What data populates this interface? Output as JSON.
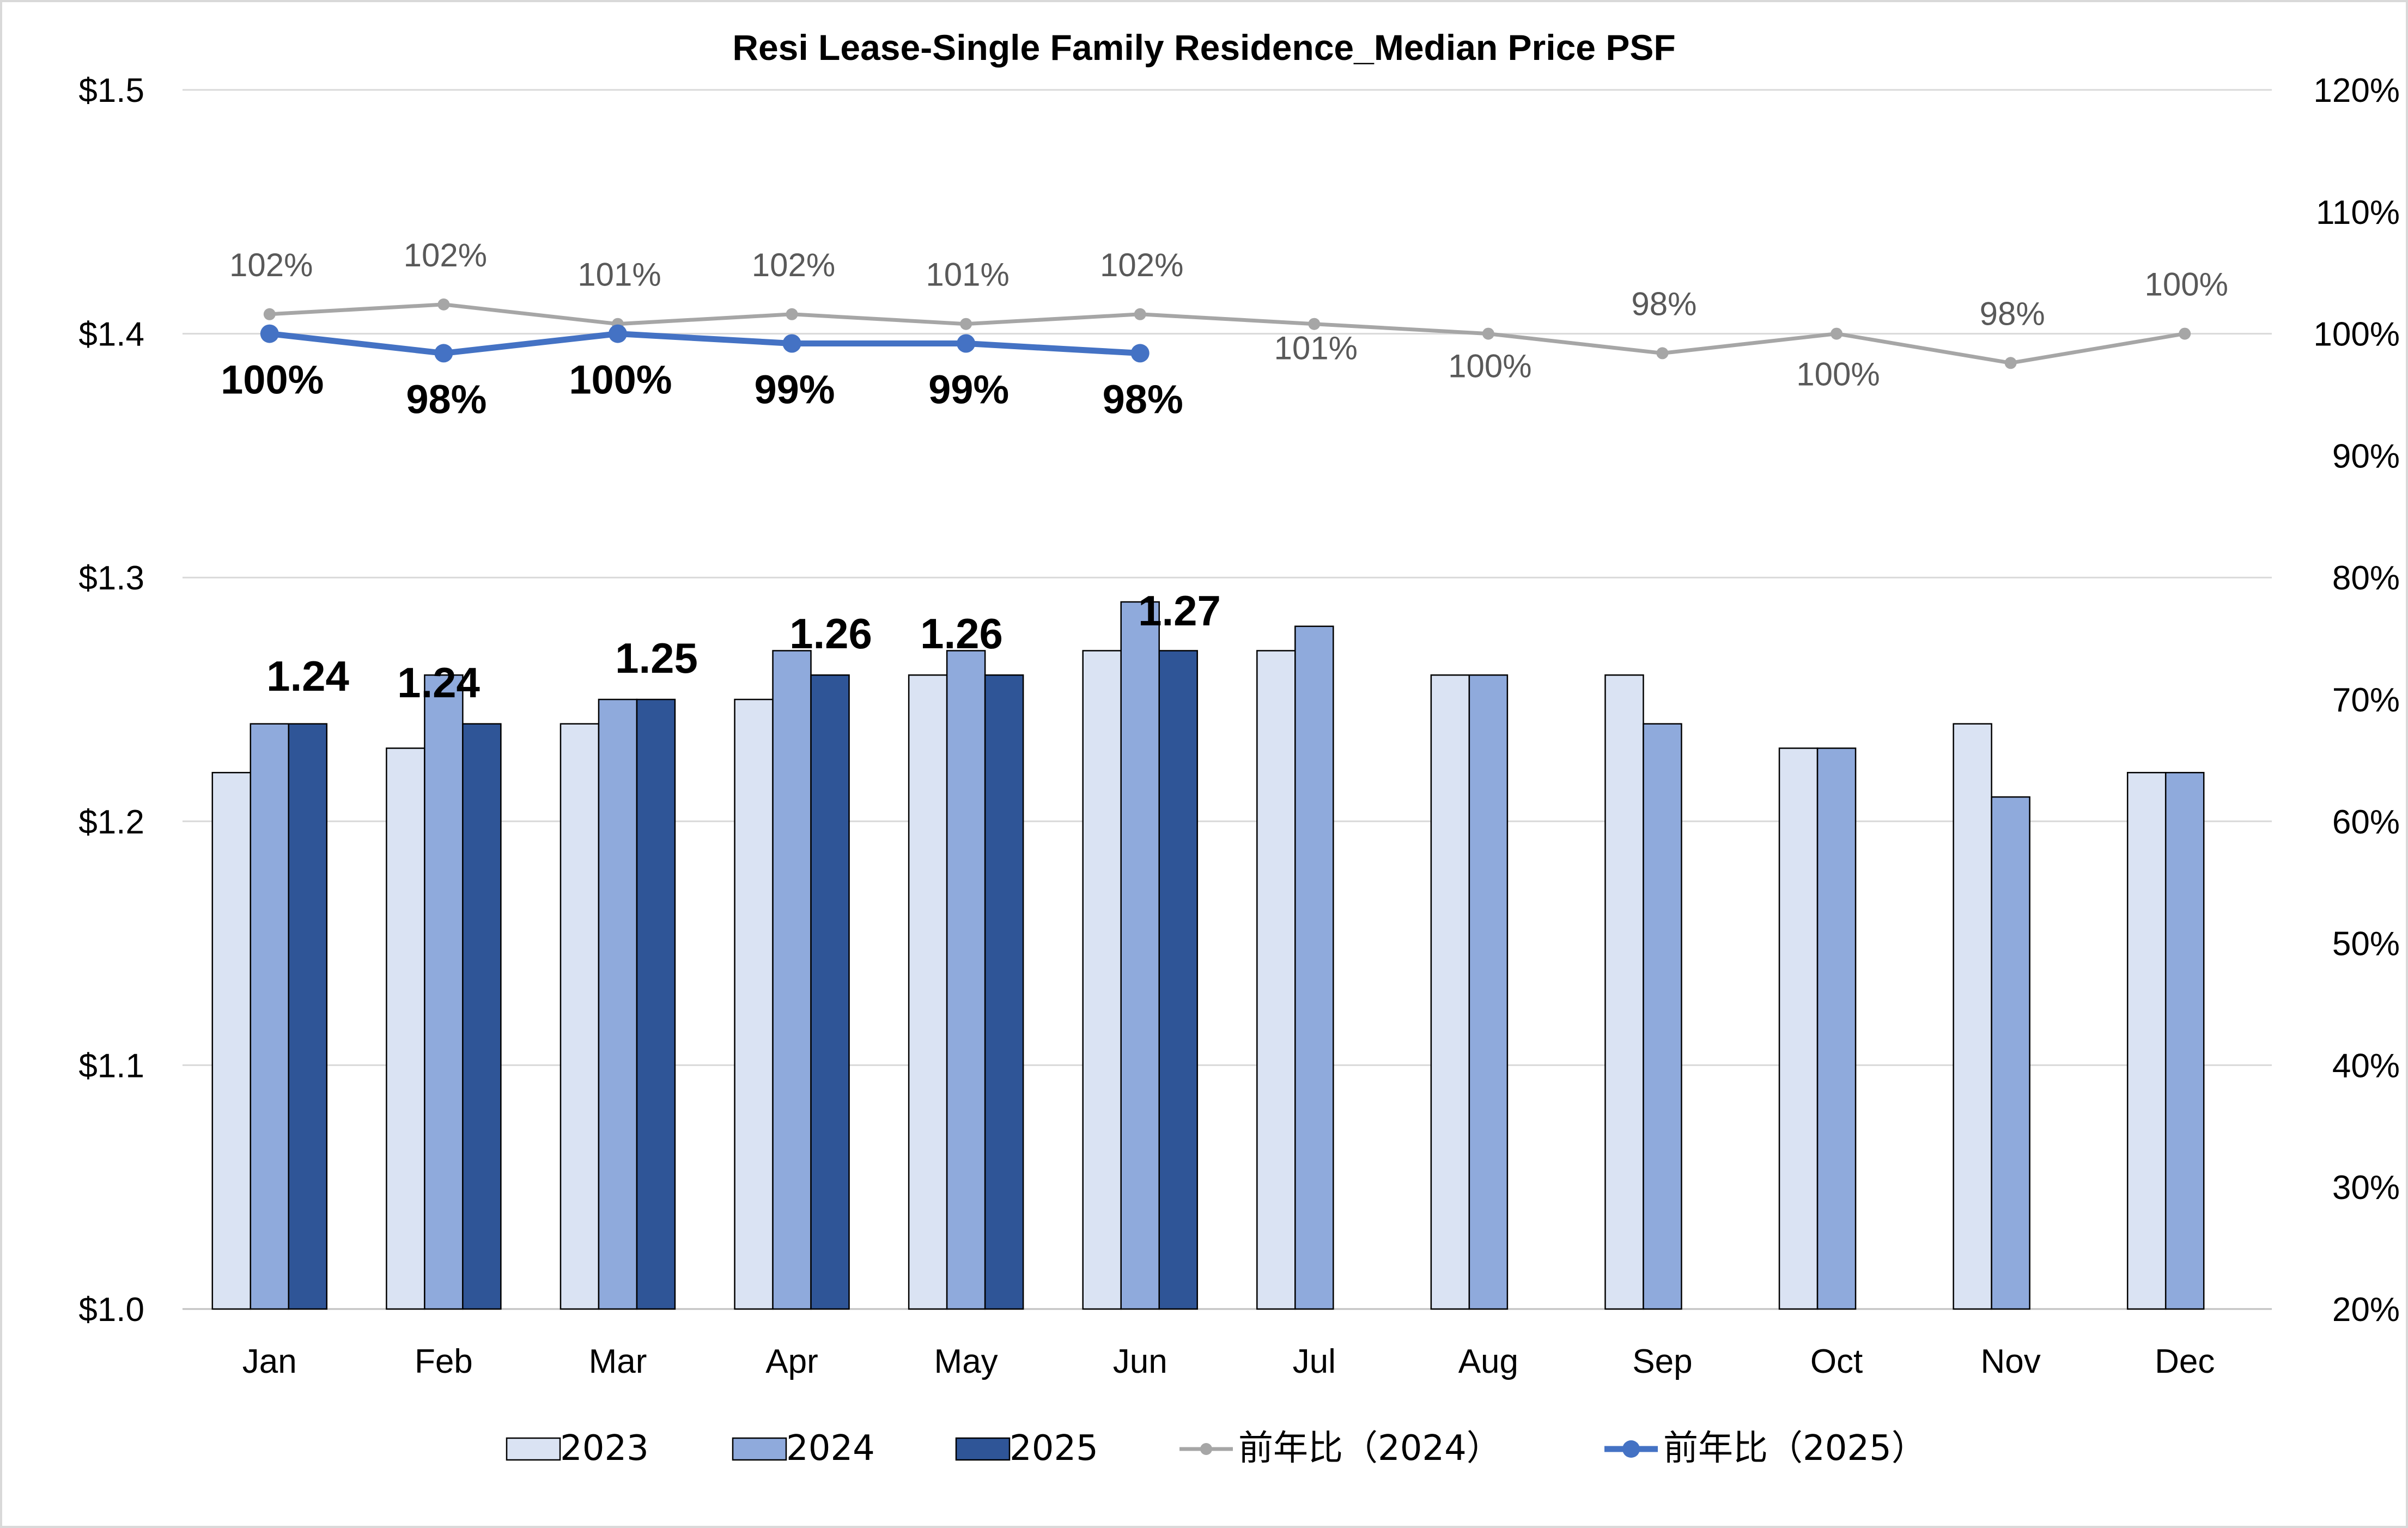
{
  "chart_data": {
    "type": "bar",
    "title": "Resi Lease-Single Family Residence_Median Price PSF",
    "categories": [
      "Jan",
      "Feb",
      "Mar",
      "Apr",
      "May",
      "Jun",
      "Jul",
      "Aug",
      "Sep",
      "Oct",
      "Nov",
      "Dec"
    ],
    "y_left": {
      "ticks": [
        "$1.0",
        "$1.1",
        "$1.2",
        "$1.3",
        "$1.4",
        "$1.5"
      ],
      "ylim": [
        1.0,
        1.5
      ]
    },
    "y_right": {
      "ticks": [
        "20%",
        "30%",
        "40%",
        "50%",
        "60%",
        "70%",
        "80%",
        "90%",
        "100%",
        "110%",
        "120%"
      ],
      "ylim": [
        20,
        120
      ]
    },
    "grid": true,
    "legend_position": "bottom",
    "series": [
      {
        "name": "2023",
        "type": "bar",
        "color": "#dae3f3",
        "values": [
          1.22,
          1.23,
          1.24,
          1.25,
          1.26,
          1.27,
          1.27,
          1.26,
          1.26,
          1.23,
          1.24,
          1.22
        ]
      },
      {
        "name": "2024",
        "type": "bar",
        "color": "#8faadc",
        "values": [
          1.24,
          1.26,
          1.25,
          1.27,
          1.27,
          1.29,
          1.28,
          1.26,
          1.24,
          1.23,
          1.21,
          1.22
        ]
      },
      {
        "name": "2025",
        "type": "bar",
        "color": "#2f5597",
        "values": [
          1.24,
          1.24,
          1.25,
          1.26,
          1.26,
          1.27,
          null,
          null,
          null,
          null,
          null,
          null
        ],
        "labels": [
          "1.24",
          "1.24",
          "1.25",
          "1.26",
          "1.26",
          "1.27"
        ]
      },
      {
        "name": "前年比（2024）",
        "type": "line",
        "axis": "right",
        "color": "#a6a6a6",
        "values": [
          101.6,
          102.4,
          100.8,
          101.6,
          100.8,
          101.6,
          100.8,
          100,
          98.4,
          100,
          97.6,
          100
        ],
        "labels": [
          "102%",
          "102%",
          "101%",
          "102%",
          "101%",
          "102%",
          "101%",
          "100%",
          "98%",
          "100%",
          "98%",
          "100%"
        ]
      },
      {
        "name": "前年比（2025）",
        "type": "line",
        "axis": "right",
        "color": "#4472c4",
        "values": [
          100,
          98.4,
          100,
          99.2,
          99.2,
          98.4,
          null,
          null,
          null,
          null,
          null,
          null
        ],
        "labels": [
          "100%",
          "98%",
          "100%",
          "99%",
          "99%",
          "98%"
        ]
      }
    ]
  }
}
